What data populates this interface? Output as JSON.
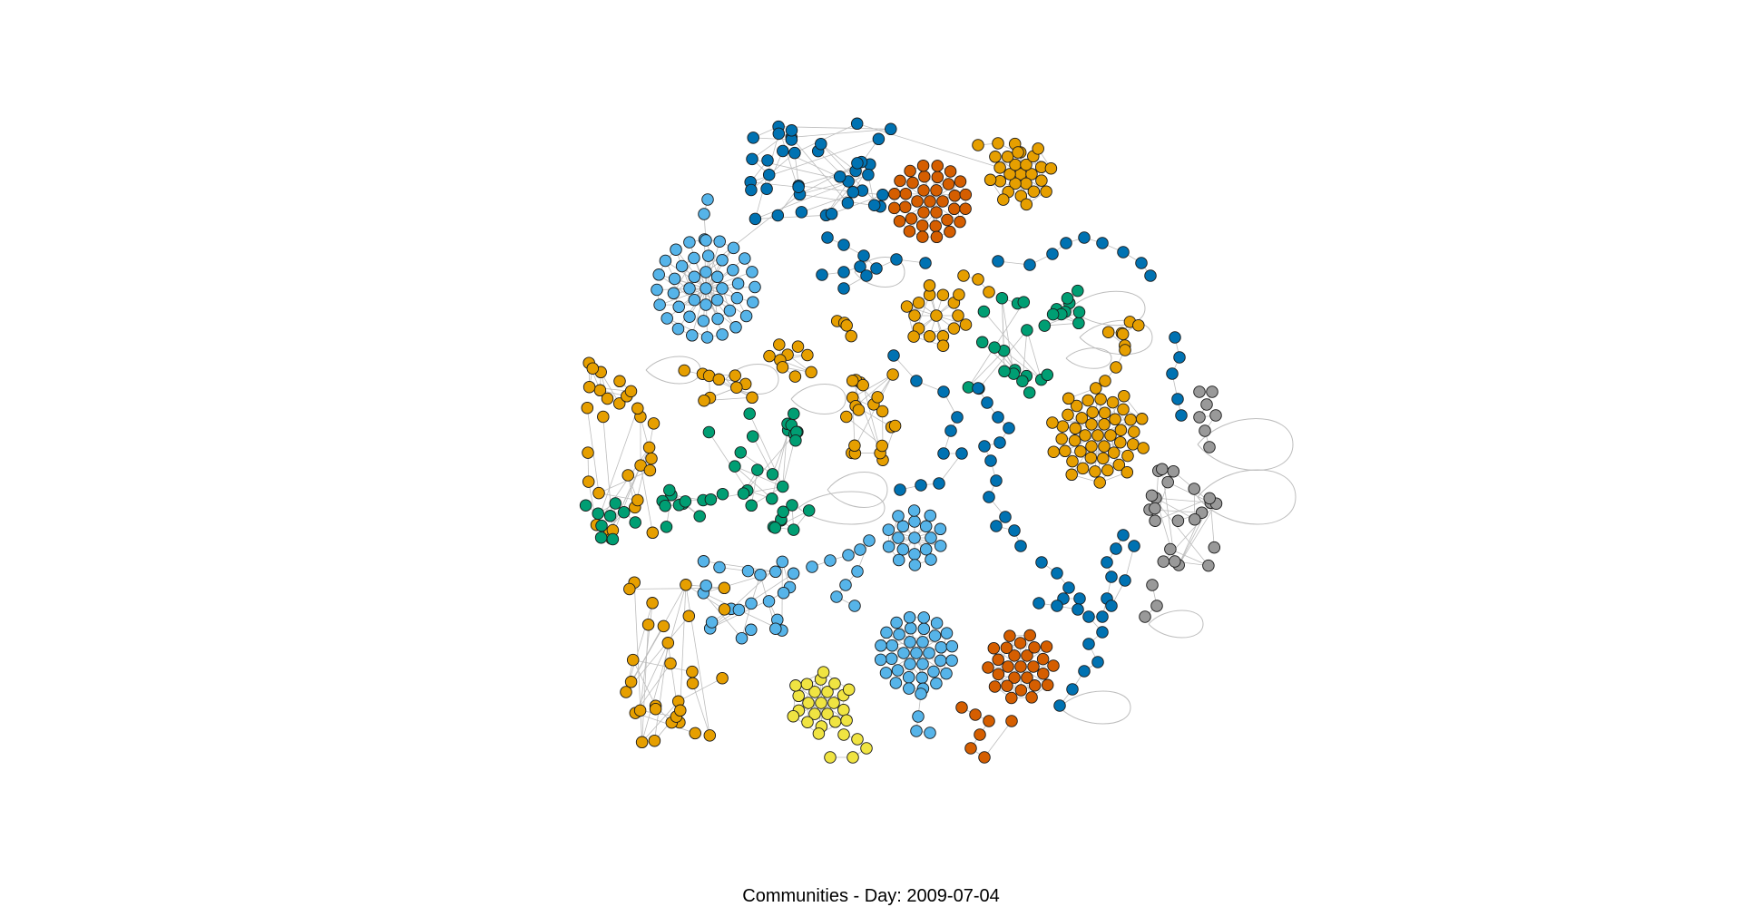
{
  "caption": "Communities - Day: 2009-07-04",
  "palette": {
    "light_blue": "#56B4E9",
    "blue": "#0072B2",
    "vermillion": "#D55E00",
    "orange": "#E69F00",
    "green": "#009E73",
    "yellow": "#F0E442",
    "grey": "#999999",
    "edge": "#BDBDBD",
    "node_stroke": "#1a1a1a"
  },
  "communities": [
    {
      "id": "c1",
      "color": "light_blue"
    },
    {
      "id": "c2",
      "color": "blue"
    },
    {
      "id": "c3",
      "color": "vermillion"
    },
    {
      "id": "c4",
      "color": "orange"
    },
    {
      "id": "c5",
      "color": "green"
    },
    {
      "id": "c6",
      "color": "yellow"
    },
    {
      "id": "c7",
      "color": "grey"
    }
  ]
}
